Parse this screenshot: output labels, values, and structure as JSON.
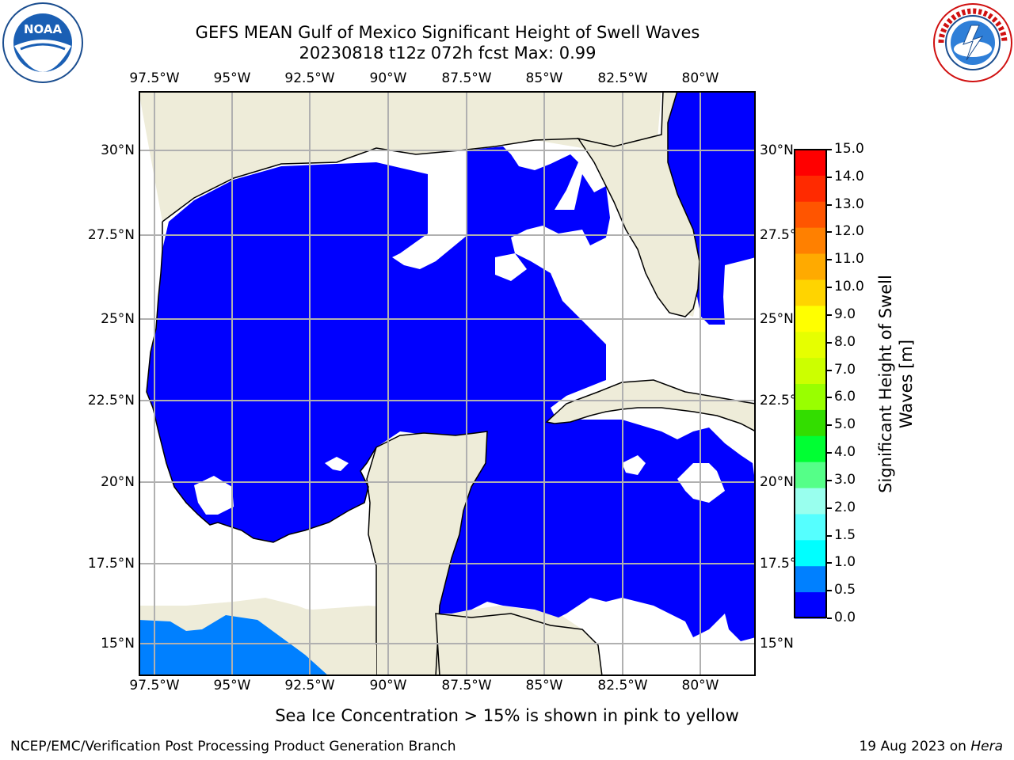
{
  "header": {
    "title_line1": "GEFS MEAN Gulf of Mexico Significant Height of Swell Waves",
    "title_line2": "20230818 t12z 072h fcst   Max: 0.99"
  },
  "logos": {
    "left": {
      "text": "NOAA",
      "ring_text": "NATIONAL OCEANIC AND ATMOSPHERIC ADMINISTRATION · U.S. DEPARTMENT OF COMMERCE"
    },
    "right": {
      "ring_text": "NATIONAL WEATHER SERVICE"
    }
  },
  "map": {
    "lon_labels": [
      "97.5°W",
      "95°W",
      "92.5°W",
      "90°W",
      "87.5°W",
      "85°W",
      "82.5°W",
      "80°W"
    ],
    "lat_labels": [
      "30°N",
      "27.5°N",
      "25°N",
      "22.5°N",
      "20°N",
      "17.5°N",
      "15°N"
    ],
    "colors": {
      "land": "#eeecd9",
      "swell_low": "#0000ff",
      "swell_mid": "#0080ff",
      "nodata": "#ffffff",
      "grid": "#b0b0b0"
    }
  },
  "colorbar": {
    "label": "Significant Height of Swell Waves [m]",
    "label_line1": "Significant Height of Swell",
    "label_line2": "Waves [m]",
    "ticks": [
      "15.0",
      "14.0",
      "13.0",
      "12.0",
      "11.0",
      "10.0",
      "9.0",
      "8.0",
      "7.0",
      "6.0",
      "5.0",
      "4.0",
      "3.0",
      "2.0",
      "1.5",
      "1.0",
      "0.5",
      "0.0"
    ],
    "colors": [
      "#ff0000",
      "#ff2a00",
      "#ff5500",
      "#ff8000",
      "#ffaa00",
      "#ffd400",
      "#ffff00",
      "#e6ff00",
      "#ccff00",
      "#99ff00",
      "#33dd00",
      "#00ff33",
      "#55ff88",
      "#99ffee",
      "#55ffff",
      "#00ffff",
      "#0080ff",
      "#0000ff"
    ]
  },
  "note": "Sea Ice Concentration > 15% is shown in pink to yellow",
  "footer": {
    "left": "NCEP/EMC/Verification Post Processing Product Generation Branch",
    "right_prefix": "19 Aug 2023 on ",
    "right_machine": "Hera"
  }
}
